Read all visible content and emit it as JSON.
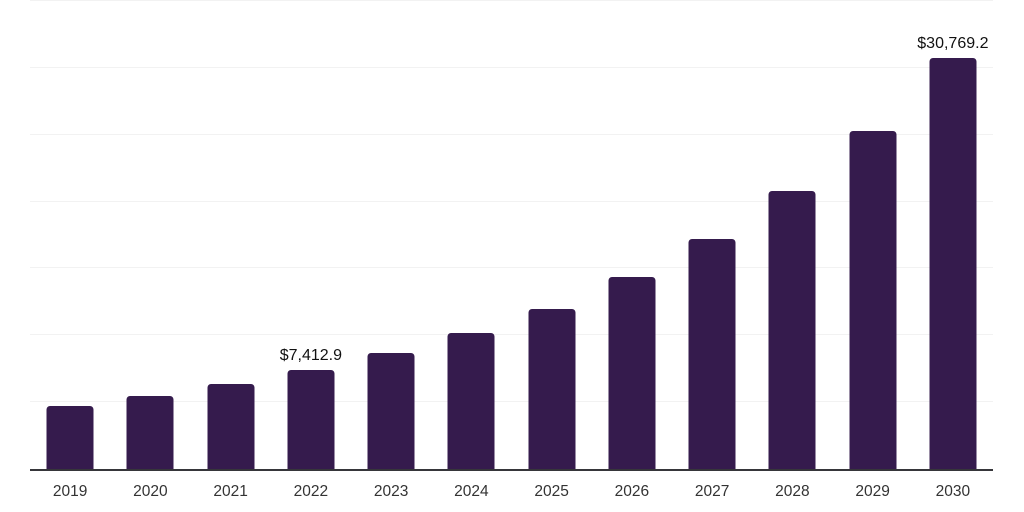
{
  "chart_data": {
    "type": "bar",
    "title": "",
    "xlabel": "",
    "ylabel": "",
    "categories": [
      "2019",
      "2020",
      "2021",
      "2022",
      "2023",
      "2024",
      "2025",
      "2026",
      "2027",
      "2028",
      "2029",
      "2030"
    ],
    "values": [
      4710,
      5460,
      6360,
      7412.9,
      8650,
      10190,
      11990,
      14360,
      17180,
      20810,
      25250,
      30769.2
    ],
    "data_labels": [
      null,
      null,
      null,
      "$7,412.9",
      null,
      null,
      null,
      null,
      null,
      null,
      null,
      "$30,769.2"
    ],
    "ylim": [
      0,
      35000
    ],
    "grid_step": 5000,
    "grid": true,
    "legend": false,
    "colors": {
      "bar": "#351b4d",
      "gridline": "#f2f2f2",
      "axis_line": "#36363a",
      "data_label_text": "#111111",
      "tick_text": "#333333",
      "background": "#ffffff"
    }
  }
}
